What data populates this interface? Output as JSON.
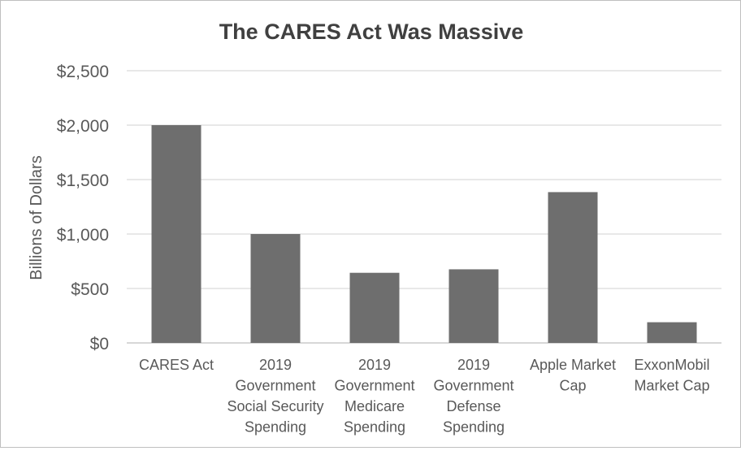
{
  "chart_data": {
    "type": "bar",
    "title": "The CARES Act Was Massive",
    "xlabel": "",
    "ylabel": "Billions of Dollars",
    "categories": [
      [
        "CARES Act"
      ],
      [
        "2019",
        "Government",
        "Social Security",
        "Spending"
      ],
      [
        "2019",
        "Government",
        "Medicare",
        "Spending"
      ],
      [
        "2019",
        "Government",
        "Defense",
        "Spending"
      ],
      [
        "Apple Market",
        "Cap"
      ],
      [
        "ExxonMobil",
        "Market Cap"
      ]
    ],
    "values": [
      2000,
      1000,
      644,
      676,
      1385,
      190
    ],
    "ylim": [
      0,
      2500
    ],
    "yticks": [
      0,
      500,
      1000,
      1500,
      2000,
      2500
    ],
    "ytick_labels": [
      "$0",
      "$500",
      "$1,000",
      "$1,500",
      "$2,000",
      "$2,500"
    ],
    "grid": true,
    "legend": "none",
    "colors": {
      "bar": "#6e6e6e",
      "grid": "#d9d9d9",
      "axis": "#bfbfbf",
      "text": "#595959",
      "title": "#404040"
    }
  }
}
